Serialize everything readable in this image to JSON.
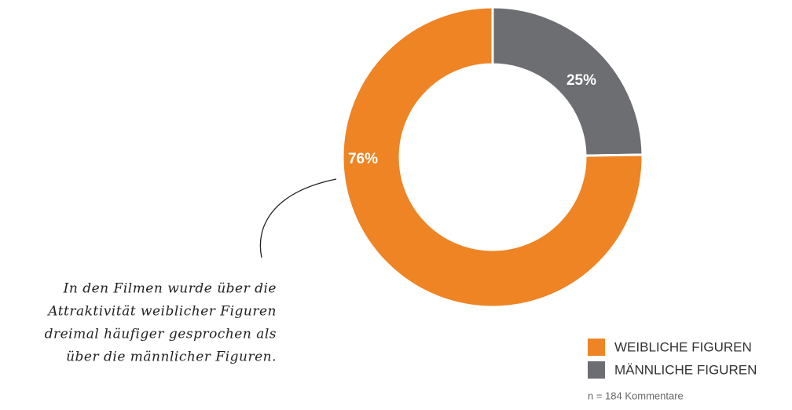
{
  "chart_data": {
    "type": "pie",
    "categories": [
      "WEIBLICHE FIGUREN",
      "MÄNNLICHE FIGUREN"
    ],
    "values": [
      76,
      25
    ],
    "value_labels": [
      "76%",
      "25%"
    ],
    "colors": [
      "#ee8424",
      "#6d6e71"
    ],
    "note": "n = 184 Kommentare",
    "annotation": [
      "In den Filmen wurde über die",
      "Attraktivität weiblicher Figuren",
      "dreimal häufiger gesprochen als",
      "über die männlicher Figuren."
    ]
  }
}
